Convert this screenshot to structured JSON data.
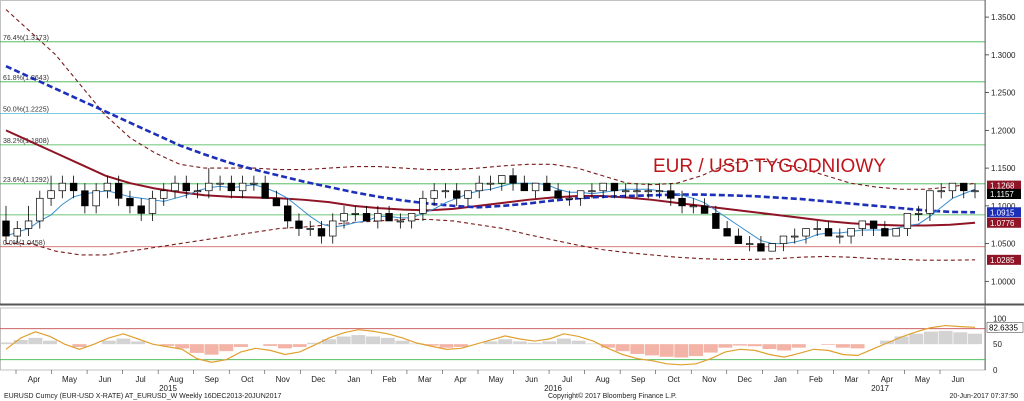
{
  "colors": {
    "up_candle": "#ffffff",
    "down_candle": "#000000",
    "wick": "#000000",
    "ma_blue_dash": "#1c2fb8",
    "ma_red": "#8e1426",
    "ma_light": "#3a8fd0",
    "band_dash": "#7a1b1b",
    "fib_line": "#3cb34a",
    "fib_mid": "#4fb8d8",
    "support_red": "#c64d4d",
    "osc_line": "#e0a030",
    "osc_hist_pos": "#c8c8c8",
    "osc_hist_neg": "#f0a090",
    "title": "#c0141a"
  },
  "title": "EUR / USD TYGODNIOWY",
  "footer": {
    "left": "EURUSD Curncy (EUR-USD X-RATE) AT_EURUSD_W  Weekly 16DEC2013-20JUN2017",
    "center": "Copyright© 2017 Bloomberg Finance L.P.",
    "right": "20-Jun-2017 07:37:50"
  },
  "chart_data": {
    "type": "candlestick",
    "title": "EUR / USD TYGODNIOWY",
    "ylim": [
      0.97,
      1.37
    ],
    "y_ticks": [
      "1.3500",
      "1.3000",
      "1.2500",
      "1.2000",
      "1.1500",
      "1.1000",
      "1.0500",
      "1.0000"
    ],
    "y_tick_values": [
      1.35,
      1.3,
      1.25,
      1.2,
      1.15,
      1.1,
      1.05,
      1.0
    ],
    "x_months": [
      "Apr",
      "May",
      "Jun",
      "Jul",
      "Aug",
      "Sep",
      "Oct",
      "Nov",
      "Dec",
      "Jan",
      "Feb",
      "Mar",
      "Apr",
      "May",
      "Jun",
      "Jul",
      "Aug",
      "Sep",
      "Oct",
      "Nov",
      "Dec",
      "Jan",
      "Feb",
      "Mar",
      "Apr",
      "May",
      "Jun"
    ],
    "x_years": [
      "2015",
      "2016",
      "2017"
    ],
    "fib_levels": [
      {
        "label": "76.4%(1.3173)",
        "value": 1.3173,
        "kind": "green"
      },
      {
        "label": "61.8%(1.2643)",
        "value": 1.2643,
        "kind": "green"
      },
      {
        "label": "50.0%(1.2225)",
        "value": 1.2225,
        "kind": "blue"
      },
      {
        "label": "38.2%(1.1808)",
        "value": 1.1808,
        "kind": "green"
      },
      {
        "label": "23.6%(1.1292)",
        "value": 1.1292,
        "kind": "green"
      },
      {
        "label": "0.0%(1.0458)",
        "value": 1.0458,
        "kind": "red"
      }
    ],
    "price_tags": [
      {
        "label": "1.1268",
        "value": 1.1268,
        "color": "#8e1426"
      },
      {
        "label": "1.1157",
        "value": 1.1157,
        "color": "#000000"
      },
      {
        "label": "1.0915",
        "value": 1.0915,
        "color": "#1c2fb8"
      },
      {
        "label": "1.0776",
        "value": 1.0776,
        "color": "#8e1426"
      },
      {
        "label": "1.0285",
        "value": 1.0285,
        "color": "#8e1426"
      }
    ],
    "candles": [
      [
        1.08,
        1.1,
        1.05,
        1.06
      ],
      [
        1.06,
        1.08,
        1.05,
        1.07
      ],
      [
        1.07,
        1.1,
        1.06,
        1.08
      ],
      [
        1.08,
        1.12,
        1.07,
        1.11
      ],
      [
        1.11,
        1.14,
        1.1,
        1.12
      ],
      [
        1.12,
        1.14,
        1.11,
        1.13
      ],
      [
        1.13,
        1.14,
        1.11,
        1.12
      ],
      [
        1.12,
        1.13,
        1.09,
        1.1
      ],
      [
        1.1,
        1.13,
        1.09,
        1.12
      ],
      [
        1.12,
        1.14,
        1.11,
        1.13
      ],
      [
        1.13,
        1.14,
        1.1,
        1.11
      ],
      [
        1.11,
        1.12,
        1.09,
        1.1
      ],
      [
        1.1,
        1.11,
        1.08,
        1.09
      ],
      [
        1.09,
        1.12,
        1.08,
        1.11
      ],
      [
        1.11,
        1.13,
        1.1,
        1.12
      ],
      [
        1.12,
        1.14,
        1.11,
        1.13
      ],
      [
        1.13,
        1.14,
        1.11,
        1.12
      ],
      [
        1.12,
        1.13,
        1.11,
        1.12
      ],
      [
        1.12,
        1.15,
        1.11,
        1.13
      ],
      [
        1.13,
        1.14,
        1.12,
        1.13
      ],
      [
        1.13,
        1.14,
        1.11,
        1.12
      ],
      [
        1.12,
        1.14,
        1.11,
        1.13
      ],
      [
        1.13,
        1.14,
        1.12,
        1.13
      ],
      [
        1.13,
        1.14,
        1.11,
        1.11
      ],
      [
        1.11,
        1.12,
        1.1,
        1.1
      ],
      [
        1.1,
        1.11,
        1.07,
        1.08
      ],
      [
        1.08,
        1.09,
        1.06,
        1.07
      ],
      [
        1.07,
        1.08,
        1.06,
        1.07
      ],
      [
        1.07,
        1.08,
        1.05,
        1.06
      ],
      [
        1.06,
        1.09,
        1.05,
        1.08
      ],
      [
        1.08,
        1.1,
        1.07,
        1.09
      ],
      [
        1.09,
        1.1,
        1.08,
        1.09
      ],
      [
        1.09,
        1.1,
        1.08,
        1.08
      ],
      [
        1.08,
        1.1,
        1.07,
        1.09
      ],
      [
        1.09,
        1.1,
        1.08,
        1.08
      ],
      [
        1.08,
        1.09,
        1.07,
        1.08
      ],
      [
        1.08,
        1.09,
        1.07,
        1.09
      ],
      [
        1.09,
        1.12,
        1.08,
        1.11
      ],
      [
        1.11,
        1.13,
        1.1,
        1.12
      ],
      [
        1.12,
        1.13,
        1.11,
        1.12
      ],
      [
        1.12,
        1.13,
        1.1,
        1.11
      ],
      [
        1.11,
        1.12,
        1.1,
        1.12
      ],
      [
        1.12,
        1.14,
        1.11,
        1.13
      ],
      [
        1.13,
        1.14,
        1.12,
        1.13
      ],
      [
        1.13,
        1.14,
        1.12,
        1.14
      ],
      [
        1.14,
        1.15,
        1.12,
        1.13
      ],
      [
        1.13,
        1.14,
        1.12,
        1.12
      ],
      [
        1.12,
        1.13,
        1.11,
        1.13
      ],
      [
        1.13,
        1.14,
        1.12,
        1.12
      ],
      [
        1.12,
        1.13,
        1.11,
        1.11
      ],
      [
        1.11,
        1.12,
        1.1,
        1.11
      ],
      [
        1.11,
        1.12,
        1.1,
        1.12
      ],
      [
        1.12,
        1.13,
        1.11,
        1.12
      ],
      [
        1.12,
        1.13,
        1.11,
        1.13
      ],
      [
        1.13,
        1.13,
        1.11,
        1.12
      ],
      [
        1.12,
        1.13,
        1.11,
        1.12
      ],
      [
        1.12,
        1.13,
        1.11,
        1.12
      ],
      [
        1.12,
        1.13,
        1.11,
        1.12
      ],
      [
        1.12,
        1.13,
        1.11,
        1.12
      ],
      [
        1.12,
        1.13,
        1.1,
        1.11
      ],
      [
        1.11,
        1.12,
        1.09,
        1.1
      ],
      [
        1.1,
        1.11,
        1.09,
        1.1
      ],
      [
        1.1,
        1.11,
        1.09,
        1.09
      ],
      [
        1.09,
        1.1,
        1.07,
        1.07
      ],
      [
        1.07,
        1.08,
        1.06,
        1.06
      ],
      [
        1.06,
        1.07,
        1.05,
        1.05
      ],
      [
        1.05,
        1.06,
        1.04,
        1.05
      ],
      [
        1.05,
        1.06,
        1.04,
        1.04
      ],
      [
        1.04,
        1.05,
        1.04,
        1.05
      ],
      [
        1.05,
        1.06,
        1.04,
        1.06
      ],
      [
        1.06,
        1.07,
        1.05,
        1.06
      ],
      [
        1.06,
        1.07,
        1.05,
        1.07
      ],
      [
        1.07,
        1.08,
        1.06,
        1.07
      ],
      [
        1.07,
        1.08,
        1.06,
        1.06
      ],
      [
        1.06,
        1.07,
        1.05,
        1.06
      ],
      [
        1.06,
        1.07,
        1.05,
        1.07
      ],
      [
        1.07,
        1.08,
        1.06,
        1.08
      ],
      [
        1.08,
        1.08,
        1.06,
        1.07
      ],
      [
        1.07,
        1.08,
        1.06,
        1.06
      ],
      [
        1.06,
        1.07,
        1.06,
        1.07
      ],
      [
        1.07,
        1.09,
        1.06,
        1.09
      ],
      [
        1.09,
        1.1,
        1.08,
        1.09
      ],
      [
        1.09,
        1.12,
        1.08,
        1.12
      ],
      [
        1.12,
        1.13,
        1.11,
        1.12
      ],
      [
        1.12,
        1.13,
        1.11,
        1.13
      ],
      [
        1.13,
        1.13,
        1.11,
        1.12
      ],
      [
        1.12,
        1.13,
        1.11,
        1.12
      ]
    ],
    "ma_blue_dash": [
      1.285,
      1.27,
      1.255,
      1.24,
      1.225,
      1.21,
      1.195,
      1.18,
      1.168,
      1.157,
      1.148,
      1.14,
      1.132,
      1.125,
      1.118,
      1.112,
      1.107,
      1.103,
      1.1,
      1.098,
      1.1,
      1.103,
      1.107,
      1.11,
      1.112,
      1.113,
      1.114,
      1.115,
      1.115,
      1.114,
      1.113,
      1.111,
      1.109,
      1.106,
      1.103,
      1.1,
      1.097,
      1.094,
      1.092,
      1.0915
    ],
    "ma_red": [
      1.2,
      1.185,
      1.17,
      1.155,
      1.14,
      1.13,
      1.123,
      1.118,
      1.114,
      1.112,
      1.111,
      1.11,
      1.108,
      1.105,
      1.1,
      1.097,
      1.095,
      1.094,
      1.096,
      1.1,
      1.104,
      1.108,
      1.111,
      1.113,
      1.113,
      1.111,
      1.108,
      1.104,
      1.1,
      1.096,
      1.092,
      1.088,
      1.084,
      1.08,
      1.077,
      1.075,
      1.074,
      1.074,
      1.075,
      1.0776
    ],
    "band_upper": [
      1.36,
      1.33,
      1.3,
      1.26,
      1.22,
      1.19,
      1.17,
      1.155,
      1.15,
      1.15,
      1.15,
      1.148,
      1.148,
      1.15,
      1.152,
      1.152,
      1.15,
      1.148,
      1.148,
      1.15,
      1.153,
      1.155,
      1.155,
      1.15,
      1.14,
      1.13,
      1.128,
      1.13,
      1.14,
      1.155,
      1.16,
      1.158,
      1.15,
      1.14,
      1.13,
      1.125,
      1.122,
      1.122,
      1.125,
      1.13
    ],
    "band_lower": [
      1.05,
      1.05,
      1.04,
      1.035,
      1.035,
      1.04,
      1.045,
      1.05,
      1.055,
      1.06,
      1.065,
      1.07,
      1.072,
      1.075,
      1.078,
      1.08,
      1.082,
      1.082,
      1.08,
      1.075,
      1.07,
      1.062,
      1.055,
      1.048,
      1.042,
      1.038,
      1.035,
      1.032,
      1.03,
      1.029,
      1.029,
      1.03,
      1.032,
      1.033,
      1.032,
      1.03,
      1.029,
      1.028,
      1.028,
      1.0285
    ],
    "osc_ticks": [
      "100",
      "50",
      "0"
    ],
    "osc_tick_values": [
      100,
      50,
      0
    ],
    "osc_last_label": "82.6335",
    "osc_line": [
      40,
      62,
      74,
      65,
      50,
      40,
      50,
      62,
      70,
      60,
      50,
      45,
      40,
      22,
      15,
      20,
      35,
      42,
      38,
      30,
      35,
      48,
      62,
      72,
      78,
      75,
      70,
      62,
      52,
      46,
      40,
      42,
      50,
      58,
      66,
      60,
      56,
      60,
      70,
      65,
      56,
      42,
      30,
      22,
      18,
      12,
      10,
      12,
      22,
      35,
      40,
      38,
      30,
      25,
      32,
      40,
      38,
      30,
      28,
      40,
      52,
      64,
      74,
      82,
      86,
      84,
      82.6
    ],
    "osc_hist": [
      5,
      12,
      18,
      10,
      0,
      -8,
      0,
      10,
      16,
      8,
      0,
      -5,
      -12,
      -25,
      -30,
      -20,
      -8,
      0,
      -5,
      -12,
      -8,
      4,
      14,
      22,
      26,
      22,
      18,
      10,
      2,
      -4,
      -10,
      -8,
      0,
      8,
      14,
      8,
      4,
      8,
      16,
      10,
      2,
      -10,
      -20,
      -28,
      -32,
      -36,
      -38,
      -34,
      -24,
      -10,
      -4,
      -6,
      -14,
      -18,
      -10,
      0,
      -2,
      -10,
      -12,
      0,
      10,
      22,
      30,
      36,
      38,
      34,
      30
    ]
  }
}
